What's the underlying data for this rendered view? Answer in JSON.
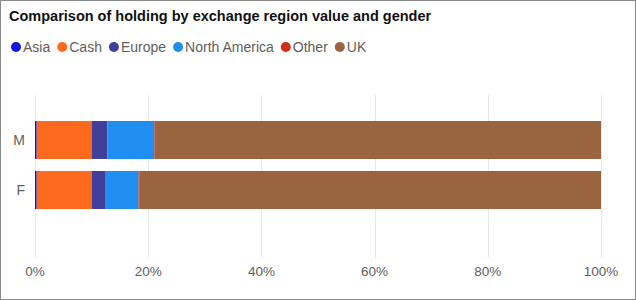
{
  "chart_data": {
    "type": "bar",
    "title": "Comparison of holding by exchange region value and gender",
    "orientation": "horizontal",
    "stacked": true,
    "grid": true,
    "legend": "top",
    "categories": [
      "M",
      "F"
    ],
    "series": [
      {
        "name": "Asia",
        "color": "#1212e0",
        "values": [
          0.3,
          0.3
        ]
      },
      {
        "name": "Cash",
        "color": "#fd6a1e",
        "values": [
          9.7,
          9.7
        ]
      },
      {
        "name": "Europe",
        "color": "#40409b",
        "values": [
          2.8,
          2.5
        ]
      },
      {
        "name": "North America",
        "color": "#1e8ff0",
        "values": [
          8.3,
          5.8
        ]
      },
      {
        "name": "Other",
        "color": "#cf2d17",
        "values": [
          0.1,
          0.1
        ]
      },
      {
        "name": "UK",
        "color": "#9a6440",
        "values": [
          78.8,
          81.6
        ]
      }
    ],
    "xlim": [
      0,
      100
    ],
    "xticks": [
      {
        "value": 0,
        "label": "0%"
      },
      {
        "value": 20,
        "label": "20%"
      },
      {
        "value": 40,
        "label": "40%"
      },
      {
        "value": 60,
        "label": "60%"
      },
      {
        "value": 80,
        "label": "80%"
      },
      {
        "value": 100,
        "label": "100%"
      }
    ]
  }
}
